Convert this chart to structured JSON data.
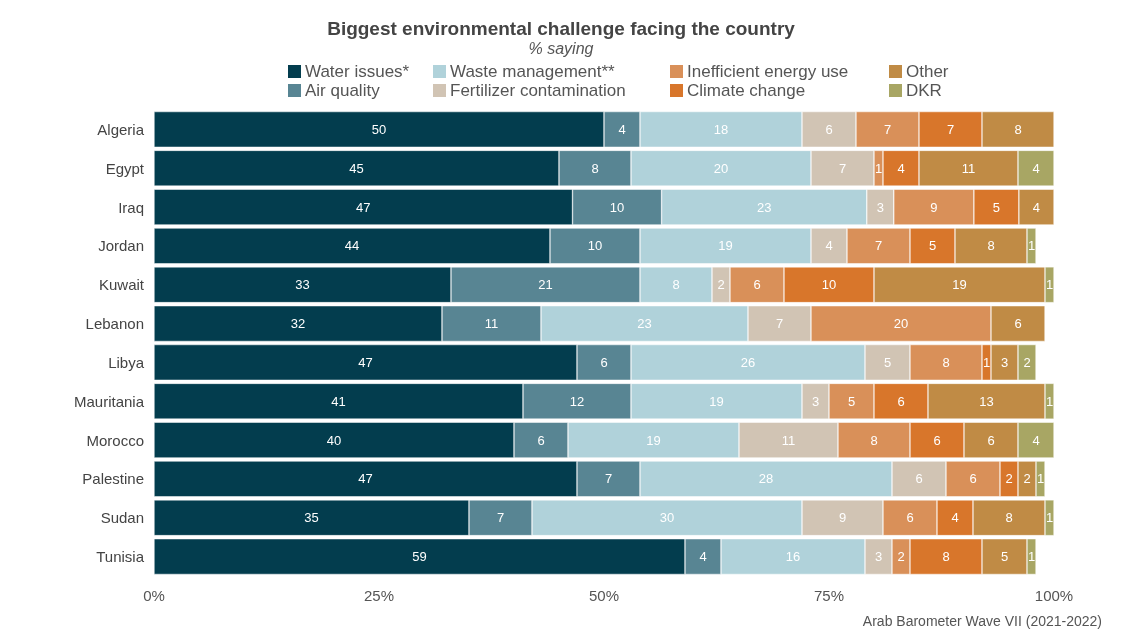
{
  "chart_data": {
    "type": "bar",
    "orientation": "horizontal",
    "stacked": true,
    "title": "Biggest environmental challenge facing the country",
    "subtitle": "% saying",
    "annotations": [
      "Arab Barometer Wave VII (2021-2022)"
    ],
    "categories": [
      "Algeria",
      "Egypt",
      "Iraq",
      "Jordan",
      "Kuwait",
      "Lebanon",
      "Libya",
      "Mauritania",
      "Morocco",
      "Palestine",
      "Sudan",
      "Tunisia"
    ],
    "series": [
      {
        "name": "Water issues*",
        "color": "#033d4e",
        "values": [
          50,
          45,
          46.5,
          44,
          33,
          32,
          47,
          41,
          40,
          47,
          35,
          59
        ],
        "value_labels": [
          "50",
          "45",
          "47",
          "44",
          "33",
          "32",
          "47",
          "41",
          "40",
          "47",
          "35",
          "59"
        ]
      },
      {
        "name": "Air quality",
        "color": "#588593",
        "values": [
          4,
          8,
          9.9,
          10,
          21,
          11,
          6,
          12,
          6,
          7,
          7,
          4
        ],
        "value_labels": [
          "4",
          "8",
          "10",
          "10",
          "21",
          "11",
          "6",
          "12",
          "6",
          "7",
          "7",
          "4"
        ]
      },
      {
        "name": "Waste management**",
        "color": "#b0d2da",
        "values": [
          18,
          20,
          22.8,
          19,
          8,
          23,
          26,
          19,
          19,
          28,
          30,
          16
        ],
        "value_labels": [
          "18",
          "20",
          "23",
          "19",
          "8",
          "23",
          "26",
          "19",
          "19",
          "28",
          "30",
          "16"
        ]
      },
      {
        "name": "Fertilizer contamination",
        "color": "#d1c4b4",
        "values": [
          6,
          7,
          3,
          4,
          2,
          7,
          5,
          3,
          11,
          6,
          9,
          3
        ],
        "value_labels": [
          "6",
          "7",
          "3",
          "4",
          "2",
          "7",
          "5",
          "3",
          "11",
          "6",
          "9",
          "3"
        ]
      },
      {
        "name": "Inefficient energy use",
        "color": "#d99059",
        "values": [
          7,
          1,
          8.9,
          7,
          6,
          20,
          8,
          5,
          8,
          6,
          6,
          2
        ],
        "value_labels": [
          "7",
          "1",
          "9",
          "7",
          "6",
          "20",
          "8",
          "5",
          "8",
          "6",
          "6",
          "2"
        ]
      },
      {
        "name": "Climate change",
        "color": "#d8762b",
        "values": [
          7,
          4,
          5,
          5,
          10,
          null,
          1,
          6,
          6,
          2,
          4,
          8
        ],
        "value_labels": [
          "7",
          "4",
          "5",
          "5",
          "10",
          null,
          "1",
          "6",
          "6",
          "2",
          "4",
          "8"
        ]
      },
      {
        "name": "Other",
        "color": "#c08b45",
        "values": [
          8,
          11,
          3.9,
          8,
          19,
          6,
          3,
          13,
          6,
          2,
          8,
          5
        ],
        "value_labels": [
          "8",
          "11",
          "4",
          "8",
          "19",
          "6",
          "3",
          "13",
          "6",
          "2",
          "8",
          "5"
        ]
      },
      {
        "name": "DKR",
        "color": "#a8a664",
        "values": [
          null,
          4,
          null,
          1,
          1,
          null,
          2,
          1,
          4,
          1,
          1,
          1
        ],
        "value_labels": [
          null,
          "4",
          null,
          "1",
          "1",
          null,
          "2",
          "1",
          "4",
          "1",
          "1",
          "1"
        ]
      }
    ],
    "xlim": [
      0,
      100
    ],
    "xticks": [
      {
        "value": 0,
        "label": "0%"
      },
      {
        "value": 25,
        "label": "25%"
      },
      {
        "value": 50,
        "label": "50%"
      },
      {
        "value": 75,
        "label": "75%"
      },
      {
        "value": 100,
        "label": "100%"
      }
    ],
    "grid": false,
    "legend": "top"
  }
}
